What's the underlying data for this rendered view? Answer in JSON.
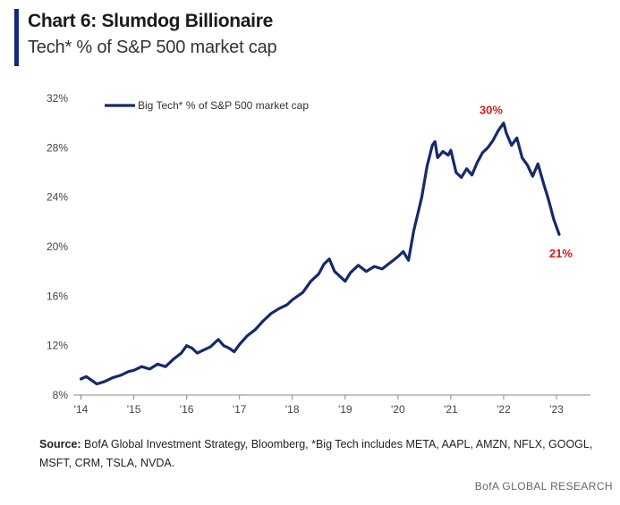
{
  "header": {
    "title": "Chart 6: Slumdog Billionaire",
    "subtitle": "Tech* % of S&P 500 market cap"
  },
  "footer": {
    "source_label": "Source:",
    "source_text": "BofA Global Investment Strategy, Bloomberg, *Big Tech includes META, AAPL, AMZN, NFLX, GOOGL, MSFT, CRM, TSLA, NVDA.",
    "brand": "BofA GLOBAL RESEARCH"
  },
  "colors": {
    "series": "#16296e",
    "annotation": "#d7191c",
    "accent": "#0f2a7a",
    "axis": "#888888"
  },
  "chart_data": {
    "type": "line",
    "title": "Chart 6: Slumdog Billionaire",
    "subtitle": "Tech* % of S&P 500 market cap",
    "xlabel": "",
    "ylabel": "",
    "xlim": [
      2014,
      2024
    ],
    "ylim": [
      8,
      32
    ],
    "yticks": [
      8,
      12,
      16,
      20,
      24,
      28,
      32
    ],
    "ytick_labels": [
      "8%",
      "12%",
      "16%",
      "20%",
      "24%",
      "28%",
      "32%"
    ],
    "xticks": [
      2014,
      2015,
      2016,
      2017,
      2018,
      2019,
      2020,
      2021,
      2022,
      2023
    ],
    "xtick_labels": [
      "'14",
      "'15",
      "'16",
      "'17",
      "'18",
      "'19",
      "'20",
      "'21",
      "'22",
      "'23"
    ],
    "grid": false,
    "legend_position": "top-left",
    "series": [
      {
        "name": "Big Tech* % of S&P 500 market cap",
        "points": [
          [
            2014.0,
            9.3
          ],
          [
            2014.1,
            9.5
          ],
          [
            2014.2,
            9.2
          ],
          [
            2014.3,
            8.9
          ],
          [
            2014.45,
            9.1
          ],
          [
            2014.6,
            9.4
          ],
          [
            2014.75,
            9.6
          ],
          [
            2014.9,
            9.9
          ],
          [
            2015.0,
            10.0
          ],
          [
            2015.15,
            10.3
          ],
          [
            2015.3,
            10.1
          ],
          [
            2015.45,
            10.5
          ],
          [
            2015.6,
            10.3
          ],
          [
            2015.75,
            10.9
          ],
          [
            2015.9,
            11.4
          ],
          [
            2016.0,
            12.0
          ],
          [
            2016.1,
            11.8
          ],
          [
            2016.2,
            11.4
          ],
          [
            2016.3,
            11.6
          ],
          [
            2016.45,
            11.9
          ],
          [
            2016.6,
            12.5
          ],
          [
            2016.7,
            12.0
          ],
          [
            2016.8,
            11.8
          ],
          [
            2016.9,
            11.5
          ],
          [
            2017.0,
            12.1
          ],
          [
            2017.15,
            12.8
          ],
          [
            2017.3,
            13.3
          ],
          [
            2017.45,
            14.0
          ],
          [
            2017.6,
            14.6
          ],
          [
            2017.75,
            15.0
          ],
          [
            2017.9,
            15.3
          ],
          [
            2018.0,
            15.7
          ],
          [
            2018.1,
            16.0
          ],
          [
            2018.2,
            16.3
          ],
          [
            2018.35,
            17.2
          ],
          [
            2018.5,
            17.8
          ],
          [
            2018.6,
            18.6
          ],
          [
            2018.7,
            19.0
          ],
          [
            2018.8,
            18.0
          ],
          [
            2018.9,
            17.6
          ],
          [
            2019.0,
            17.2
          ],
          [
            2019.1,
            17.9
          ],
          [
            2019.25,
            18.5
          ],
          [
            2019.4,
            18.0
          ],
          [
            2019.55,
            18.4
          ],
          [
            2019.7,
            18.2
          ],
          [
            2019.85,
            18.7
          ],
          [
            2020.0,
            19.2
          ],
          [
            2020.1,
            19.6
          ],
          [
            2020.2,
            18.9
          ],
          [
            2020.3,
            21.3
          ],
          [
            2020.45,
            24.0
          ],
          [
            2020.55,
            26.5
          ],
          [
            2020.65,
            28.2
          ],
          [
            2020.7,
            28.5
          ],
          [
            2020.75,
            27.2
          ],
          [
            2020.85,
            27.7
          ],
          [
            2020.95,
            27.4
          ],
          [
            2021.0,
            27.8
          ],
          [
            2021.1,
            26.0
          ],
          [
            2021.2,
            25.6
          ],
          [
            2021.3,
            26.3
          ],
          [
            2021.4,
            25.8
          ],
          [
            2021.5,
            26.8
          ],
          [
            2021.6,
            27.6
          ],
          [
            2021.7,
            28.0
          ],
          [
            2021.8,
            28.6
          ],
          [
            2021.9,
            29.4
          ],
          [
            2022.0,
            30.0
          ],
          [
            2022.05,
            29.2
          ],
          [
            2022.15,
            28.2
          ],
          [
            2022.25,
            28.8
          ],
          [
            2022.35,
            27.2
          ],
          [
            2022.45,
            26.6
          ],
          [
            2022.55,
            25.7
          ],
          [
            2022.65,
            26.7
          ],
          [
            2022.75,
            25.2
          ],
          [
            2022.85,
            23.8
          ],
          [
            2022.95,
            22.2
          ],
          [
            2023.05,
            21.0
          ]
        ]
      }
    ],
    "annotations": [
      {
        "text": "30%",
        "x": 2022.0,
        "y": 30.0
      },
      {
        "text": "21%",
        "x": 2023.05,
        "y": 21.0
      }
    ]
  }
}
